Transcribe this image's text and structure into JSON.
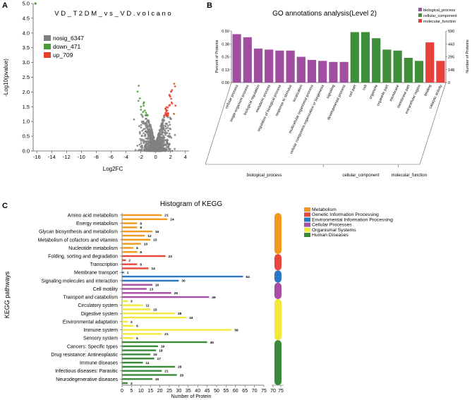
{
  "panel_labels": {
    "a": "A",
    "b": "B",
    "c": "C"
  },
  "chart_data": [
    {
      "type": "scatter",
      "title": "V D _ T 2 D M _ v s _ V D . v o l c a n o",
      "xlabel": "Log2FC",
      "ylabel": "-Log10(pvalue)",
      "xlim": [
        -16.5,
        4.5
      ],
      "ylim": [
        0,
        5
      ],
      "xticks": [
        -16,
        -14,
        -12,
        -10,
        -8,
        -6,
        -4,
        -2,
        0,
        2,
        4
      ],
      "yticks": [
        0,
        0.5,
        1,
        1.5,
        2,
        2.5,
        3,
        3.5,
        4,
        4.5,
        5
      ],
      "ytick_labels": [
        "0.0",
        "0.5",
        "1.0",
        "1.5",
        "2.0",
        "2.5",
        "3.0",
        "3.5",
        "4.0",
        "4.5",
        "5.0"
      ],
      "series": [
        {
          "name": "nosig_6347",
          "color": "#808080"
        },
        {
          "name": "down_471",
          "color": "#4a9a3a"
        },
        {
          "name": "up_709",
          "color": "#e8402a"
        }
      ],
      "outlier_points": [
        {
          "x": -16.2,
          "y": 5.0,
          "series": "down_471"
        }
      ],
      "cloud": {
        "x_center": 0,
        "x_spread": 1.6,
        "y_max": 2.9
      }
    },
    {
      "type": "bar",
      "title": "GO annotations analysis(Level 2)",
      "ylabel_left": "Percent of Proteins",
      "ylabel_right": "Number of Proteins",
      "ylim": [
        0,
        0.5
      ],
      "yticks_left": [
        "0.00",
        "0.13",
        "0.25",
        "0.38",
        "0.50"
      ],
      "yticks_right": [
        "0",
        "148",
        "295",
        "443",
        "590"
      ],
      "legend": [
        {
          "name": "biological_process",
          "color": "#a04fa0"
        },
        {
          "name": "cellular_component",
          "color": "#3f8f3a"
        },
        {
          "name": "molecular_function",
          "color": "#e8403a"
        }
      ],
      "groups": [
        {
          "name": "biological_process",
          "color": "#a04fa0",
          "categories": [
            "cellular process",
            "single-organism process",
            "biological regulation",
            "metabolic process",
            "regulation of biological process",
            "response to stimulus",
            "localization",
            "multicellular organismal process",
            "cellular component organization or biogenesis",
            "signaling",
            "developmental process"
          ],
          "values": [
            0.47,
            0.44,
            0.33,
            0.32,
            0.31,
            0.31,
            0.25,
            0.22,
            0.21,
            0.2,
            0.2
          ]
        },
        {
          "name": "cellular_component",
          "color": "#3f8f3a",
          "categories": [
            "cell part",
            "cell",
            "organelle",
            "organelle part",
            "membrane",
            "membrane part",
            "extracellular region"
          ],
          "values": [
            0.49,
            0.49,
            0.43,
            0.32,
            0.31,
            0.24,
            0.21
          ]
        },
        {
          "name": "molecular_function",
          "color": "#e8403a",
          "categories": [
            "binding",
            "catalytic activity"
          ],
          "values": [
            0.39,
            0.21
          ]
        }
      ]
    },
    {
      "type": "bar",
      "orientation": "horizontal",
      "title": "Histogram of KEGG",
      "xlabel": "Number of Protein",
      "ylabel": "KEGG pathways",
      "xlim": [
        0,
        75
      ],
      "xticks": [
        0,
        5,
        10,
        15,
        20,
        25,
        30,
        35,
        40,
        45,
        50,
        55,
        60,
        65,
        70,
        75
      ],
      "legend": [
        {
          "name": "Metabolism",
          "color": "#f39a1e"
        },
        {
          "name": "Genetic Information Processing",
          "color": "#e8453c"
        },
        {
          "name": "Environmental Information Processing",
          "color": "#2a78c2"
        },
        {
          "name": "Cellular Processes",
          "color": "#a64ea3"
        },
        {
          "name": "Organismal Systems",
          "color": "#f2e83a"
        },
        {
          "name": "Human Diseases",
          "color": "#3a8a3a"
        }
      ],
      "rows": [
        {
          "label": "Amino acid metabolism",
          "value": 21,
          "group": "Metabolism"
        },
        {
          "label": "",
          "value": 24,
          "group": "Metabolism"
        },
        {
          "label": "Energy metabolism",
          "value": 8,
          "group": "Metabolism"
        },
        {
          "label": "",
          "value": 8,
          "group": "Metabolism"
        },
        {
          "label": "Glycan biosynthesis and metabolism",
          "value": 16,
          "group": "Metabolism"
        },
        {
          "label": "",
          "value": 12,
          "group": "Metabolism"
        },
        {
          "label": "Metabolism of cofactors and vitamins",
          "value": 15,
          "group": "Metabolism"
        },
        {
          "label": "",
          "value": 10,
          "group": "Metabolism"
        },
        {
          "label": "Nucleotide metabolism",
          "value": 6,
          "group": "Metabolism"
        },
        {
          "label": "",
          "value": 8,
          "group": "Metabolism"
        },
        {
          "label": "Folding, sorting and degradation",
          "value": 23,
          "group": "Genetic Information Processing"
        },
        {
          "label": "",
          "value": 2,
          "group": "Genetic Information Processing"
        },
        {
          "label": "Transcription",
          "value": 8,
          "group": "Genetic Information Processing"
        },
        {
          "label": "",
          "value": 14,
          "group": "Genetic Information Processing"
        },
        {
          "label": "Membrane transport",
          "value": 1,
          "group": "Environmental Information Processing"
        },
        {
          "label": "",
          "value": 64,
          "group": "Environmental Information Processing"
        },
        {
          "label": "Signaling molecules and interaction",
          "value": 30,
          "group": "Environmental Information Processing"
        },
        {
          "label": "",
          "value": 16,
          "group": "Cellular Processes"
        },
        {
          "label": "Cell motility",
          "value": 13,
          "group": "Cellular Processes"
        },
        {
          "label": "",
          "value": 26,
          "group": "Cellular Processes"
        },
        {
          "label": "Transport and catabolism",
          "value": 46,
          "group": "Cellular Processes"
        },
        {
          "label": "",
          "value": 3,
          "group": "Organismal Systems"
        },
        {
          "label": "Circulatory system",
          "value": 11,
          "group": "Organismal Systems"
        },
        {
          "label": "",
          "value": 15,
          "group": "Organismal Systems"
        },
        {
          "label": "Digestive system",
          "value": 28,
          "group": "Organismal Systems"
        },
        {
          "label": "",
          "value": 34,
          "group": "Organismal Systems"
        },
        {
          "label": "Environmental adaptation",
          "value": 3,
          "group": "Organismal Systems"
        },
        {
          "label": "",
          "value": 6,
          "group": "Organismal Systems"
        },
        {
          "label": "Immune system",
          "value": 58,
          "group": "Organismal Systems"
        },
        {
          "label": "",
          "value": 21,
          "group": "Organismal Systems"
        },
        {
          "label": "Sensory system",
          "value": 6,
          "group": "Organismal Systems"
        },
        {
          "label": "",
          "value": 45,
          "group": "Human Diseases"
        },
        {
          "label": "Cancers: Specific types",
          "value": 19,
          "group": "Human Diseases"
        },
        {
          "label": "",
          "value": 18,
          "group": "Human Diseases"
        },
        {
          "label": "Drug resistance: Antineoplastic",
          "value": 15,
          "group": "Human Diseases"
        },
        {
          "label": "",
          "value": 17,
          "group": "Human Diseases"
        },
        {
          "label": "Immune diseases",
          "value": 11,
          "group": "Human Diseases"
        },
        {
          "label": "",
          "value": 28,
          "group": "Human Diseases"
        },
        {
          "label": "Infectious diseases: Parasitic",
          "value": 21,
          "group": "Human Diseases"
        },
        {
          "label": "",
          "value": 29,
          "group": "Human Diseases"
        },
        {
          "label": "Neurodegenerative diseases",
          "value": 16,
          "group": "Human Diseases"
        },
        {
          "label": "",
          "value": 3,
          "group": "Human Diseases"
        }
      ]
    }
  ]
}
